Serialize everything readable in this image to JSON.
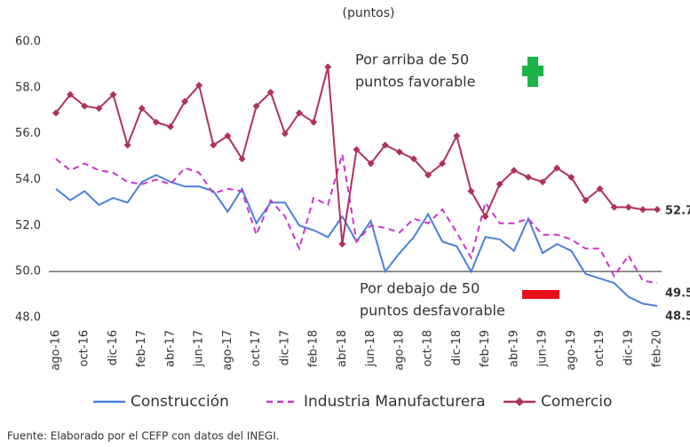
{
  "chart_data": {
    "type": "line",
    "subtitle": "(puntos)",
    "categories": [
      "ago-16",
      null,
      "oct-16",
      null,
      "dic-16",
      null,
      "feb-17",
      null,
      "abr-17",
      null,
      "jun-17",
      null,
      "ago-17",
      null,
      "oct-17",
      null,
      "dic-17",
      null,
      "feb-18",
      null,
      "abr-18",
      null,
      "jun-18",
      null,
      "ago-18",
      null,
      "oct-18",
      null,
      "dic-18",
      null,
      "feb-19",
      null,
      "abr-19",
      null,
      "jun-19",
      null,
      "ago-19",
      null,
      "oct-19",
      null,
      "dic-19",
      null,
      "feb-20"
    ],
    "series": [
      {
        "name": "Construcción",
        "color": "#4a7fe0",
        "dashed": false,
        "marker": false,
        "values": [
          53.6,
          53.1,
          53.5,
          52.9,
          53.2,
          53.0,
          53.9,
          54.2,
          53.9,
          53.7,
          53.7,
          53.5,
          52.6,
          53.6,
          52.1,
          53.0,
          53.0,
          52.0,
          51.8,
          51.5,
          52.4,
          51.3,
          52.2,
          50.0,
          50.8,
          51.5,
          52.5,
          51.3,
          51.1,
          50.0,
          51.5,
          51.4,
          50.9,
          52.3,
          50.8,
          51.2,
          50.9,
          49.9,
          49.7,
          49.5,
          48.9,
          48.6,
          48.5
        ]
      },
      {
        "name": "Industria Manufacturera",
        "color": "#cc33cc",
        "dashed": true,
        "marker": false,
        "values": [
          54.9,
          54.4,
          54.7,
          54.4,
          54.3,
          53.9,
          53.8,
          54.0,
          53.8,
          54.5,
          54.3,
          53.4,
          53.6,
          53.5,
          51.6,
          53.1,
          52.4,
          51.0,
          53.2,
          52.9,
          55.1,
          51.3,
          52.0,
          51.9,
          51.7,
          52.3,
          52.1,
          52.7,
          51.7,
          50.6,
          53.0,
          52.1,
          52.1,
          52.3,
          51.6,
          51.6,
          51.4,
          51.0,
          51.0,
          49.8,
          50.7,
          49.6,
          49.5
        ]
      },
      {
        "name": "Comercio",
        "color": "#b03060",
        "dashed": false,
        "marker": true,
        "values": [
          56.9,
          57.7,
          57.2,
          57.1,
          57.7,
          55.5,
          57.1,
          56.5,
          56.3,
          57.4,
          58.1,
          55.5,
          55.9,
          54.9,
          57.2,
          57.8,
          56.0,
          56.9,
          56.5,
          58.9,
          51.2,
          55.3,
          54.7,
          55.5,
          55.2,
          54.9,
          54.2,
          54.7,
          55.9,
          53.5,
          52.4,
          53.8,
          54.4,
          54.1,
          53.9,
          54.5,
          54.1,
          53.1,
          53.6,
          52.8,
          52.8,
          52.7,
          52.7
        ]
      }
    ],
    "ylim": [
      48.0,
      60.0
    ],
    "yticks": [
      {
        "value": 48,
        "label": "48.0"
      },
      {
        "value": 50,
        "label": "50.0"
      },
      {
        "value": 52,
        "label": "52.0"
      },
      {
        "value": 54,
        "label": "54.0"
      },
      {
        "value": 56,
        "label": "56.0"
      },
      {
        "value": 58,
        "label": "58.0"
      },
      {
        "value": 60,
        "label": "60.0"
      }
    ],
    "reference_line": 50,
    "annotations": [
      {
        "lines": [
          "Por arriba de 50",
          "puntos favorable"
        ]
      },
      {
        "lines": [
          "Por debajo de 50",
          "puntos desfavorable"
        ]
      }
    ],
    "legend": "bottom",
    "source": "Fuente: Elaborado por el CEFP con datos del INEGI."
  }
}
